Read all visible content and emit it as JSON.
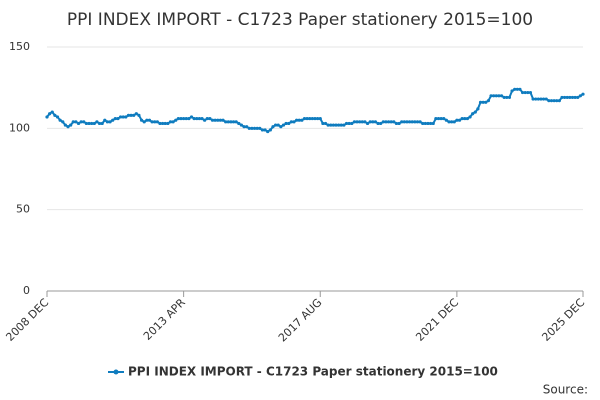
{
  "chart_data": {
    "type": "line",
    "title": "PPI INDEX IMPORT - C1723 Paper stationery 2015=100",
    "source": "Source:",
    "categories": [
      "2008 DEC",
      null,
      null,
      null,
      null,
      null,
      null,
      null,
      null,
      null,
      null,
      null,
      null,
      null,
      null,
      null,
      null,
      null,
      null,
      null,
      null,
      null,
      null,
      null,
      null,
      null,
      null,
      null,
      null,
      null,
      null,
      null,
      null,
      null,
      null,
      null,
      null,
      null,
      null,
      null,
      null,
      null,
      null,
      null,
      null,
      null,
      null,
      null,
      null,
      null,
      null,
      null,
      "2013 APR",
      null,
      null,
      null,
      null,
      null,
      null,
      null,
      null,
      null,
      null,
      null,
      null,
      null,
      null,
      null,
      null,
      null,
      null,
      null,
      null,
      null,
      null,
      null,
      null,
      null,
      null,
      null,
      null,
      null,
      null,
      null,
      null,
      null,
      null,
      null,
      null,
      null,
      null,
      null,
      null,
      null,
      null,
      null,
      null,
      null,
      null,
      null,
      null,
      null,
      null,
      null,
      "2017 AUG",
      null,
      null,
      null,
      null,
      null,
      null,
      null,
      null,
      null,
      null,
      null,
      null,
      null,
      null,
      null,
      null,
      null,
      null,
      null,
      null,
      null,
      null,
      null,
      null,
      null,
      null,
      null,
      null,
      null,
      null,
      null,
      null,
      null,
      null,
      null,
      null,
      null,
      null,
      null,
      null,
      null,
      null,
      null,
      null,
      null,
      null,
      null,
      null,
      null,
      null,
      null,
      "2021 DEC",
      null,
      null,
      null,
      null,
      null,
      null,
      null,
      null,
      null,
      null,
      null,
      null,
      null,
      null,
      null,
      null,
      null,
      null,
      null,
      null,
      null,
      null,
      null,
      null,
      null,
      null,
      null,
      null,
      null,
      null,
      null,
      null,
      null,
      null,
      null,
      null,
      null,
      null,
      null,
      null,
      null,
      null,
      null,
      null,
      null,
      null,
      null,
      "2025 DEC"
    ],
    "series": [
      {
        "name": "PPI INDEX IMPORT - C1723 Paper stationery 2015=100",
        "color": "#0f7cbf",
        "values": [
          107,
          109,
          110,
          108,
          107,
          105,
          104,
          102,
          101,
          102,
          104,
          104,
          103,
          104,
          104,
          103,
          103,
          103,
          103,
          104,
          103,
          103,
          105,
          104,
          104,
          105,
          106,
          106,
          107,
          107,
          107,
          108,
          108,
          108,
          109,
          108,
          105,
          104,
          105,
          105,
          104,
          104,
          104,
          103,
          103,
          103,
          103,
          104,
          104,
          105,
          106,
          106,
          106,
          106,
          106,
          107,
          106,
          106,
          106,
          106,
          105,
          106,
          106,
          105,
          105,
          105,
          105,
          105,
          104,
          104,
          104,
          104,
          104,
          103,
          102,
          101,
          101,
          100,
          100,
          100,
          100,
          100,
          99,
          99,
          98,
          99,
          101,
          102,
          102,
          101,
          102,
          103,
          103,
          104,
          104,
          105,
          105,
          105,
          106,
          106,
          106,
          106,
          106,
          106,
          106,
          103,
          103,
          102,
          102,
          102,
          102,
          102,
          102,
          102,
          103,
          103,
          103,
          104,
          104,
          104,
          104,
          104,
          103,
          104,
          104,
          104,
          103,
          103,
          104,
          104,
          104,
          104,
          104,
          103,
          103,
          104,
          104,
          104,
          104,
          104,
          104,
          104,
          104,
          103,
          103,
          103,
          103,
          103,
          106,
          106,
          106,
          106,
          105,
          104,
          104,
          104,
          105,
          105,
          106,
          106,
          106,
          107,
          109,
          110,
          112,
          116,
          116,
          116,
          117,
          120,
          120,
          120,
          120,
          120,
          119,
          119,
          119,
          123,
          124,
          124,
          124,
          122,
          122,
          122,
          122,
          118,
          118,
          118,
          118,
          118,
          118,
          117,
          117,
          117,
          117,
          117,
          119,
          119,
          119,
          119,
          119,
          119,
          119,
          120,
          121
        ]
      }
    ],
    "ylim": [
      0,
      150
    ],
    "yticks": [
      0,
      50,
      100,
      150
    ],
    "grid": true,
    "legend": "bottom"
  }
}
